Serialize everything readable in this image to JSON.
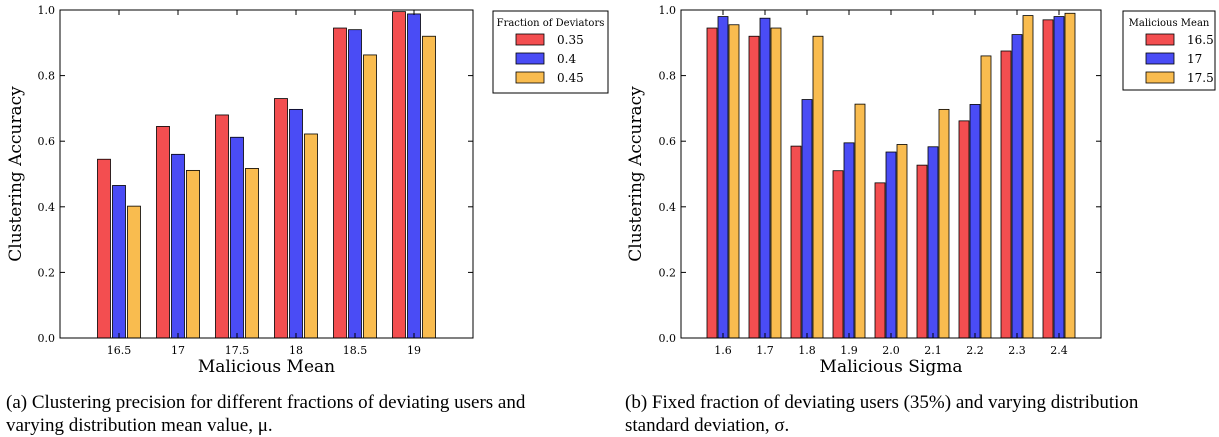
{
  "colors": {
    "series1": "#f34e50",
    "series2": "#4a4cf5",
    "series3": "#f9bc4f",
    "frame": "#000000"
  },
  "figures": [
    {
      "caption": "(a) Clustering precision for different fractions of deviating users and varying distribution mean value, μ.",
      "chart_data": {
        "type": "bar",
        "xlabel": "Malicious Mean",
        "ylabel": "Clustering Accuracy",
        "categories": [
          "16.5",
          "17",
          "17.5",
          "18",
          "18.5",
          "19"
        ],
        "ylim": [
          0,
          1.0
        ],
        "yticks": [
          "0.0",
          "0.2",
          "0.4",
          "0.6",
          "0.8",
          "1.0"
        ],
        "grid": false,
        "legend_title": "Fraction of Deviators",
        "legend_position": "outside-right-top",
        "series": [
          {
            "name": "0.35",
            "values": [
              0.545,
              0.645,
              0.68,
              0.73,
              0.945,
              0.995
            ]
          },
          {
            "name": "0.4",
            "values": [
              0.465,
              0.56,
              0.612,
              0.697,
              0.94,
              0.988
            ]
          },
          {
            "name": "0.45",
            "values": [
              0.402,
              0.511,
              0.517,
              0.622,
              0.863,
              0.92
            ]
          }
        ]
      }
    },
    {
      "caption": "(b) Fixed fraction of deviating users (35%) and varying distribution standard deviation, σ.",
      "chart_data": {
        "type": "bar",
        "xlabel": "Malicious Sigma",
        "ylabel": "Clustering Accuracy",
        "categories": [
          "1.6",
          "1.7",
          "1.8",
          "1.9",
          "2.0",
          "2.1",
          "2.2",
          "2.3",
          "2.4"
        ],
        "ylim": [
          0,
          1.0
        ],
        "yticks": [
          "0.0",
          "0.2",
          "0.4",
          "0.6",
          "0.8",
          "1.0"
        ],
        "grid": false,
        "legend_title": "Malicious Mean",
        "legend_position": "outside-right-top",
        "series": [
          {
            "name": "16.5",
            "values": [
              0.945,
              0.92,
              0.585,
              0.51,
              0.473,
              0.527,
              0.662,
              0.875,
              0.97
            ]
          },
          {
            "name": "17",
            "values": [
              0.98,
              0.975,
              0.727,
              0.595,
              0.567,
              0.583,
              0.712,
              0.925,
              0.98
            ]
          },
          {
            "name": "17.5",
            "values": [
              0.955,
              0.945,
              0.92,
              0.713,
              0.59,
              0.697,
              0.86,
              0.983,
              0.99
            ]
          }
        ]
      }
    }
  ]
}
